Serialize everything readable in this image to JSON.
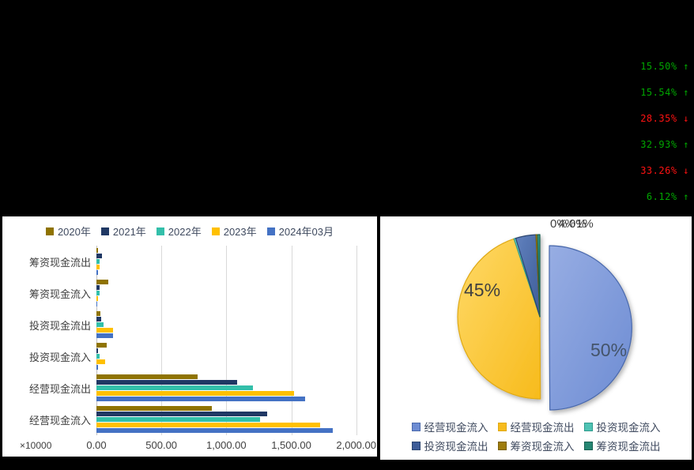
{
  "top_stats": {
    "items": [
      {
        "value": "15.50%",
        "arrow": "↑",
        "trend": "up"
      },
      {
        "value": "15.54%",
        "arrow": "↑",
        "trend": "up"
      },
      {
        "value": "28.35%",
        "arrow": "↓",
        "trend": "down"
      },
      {
        "value": "32.93%",
        "arrow": "↑",
        "trend": "up"
      },
      {
        "value": "33.26%",
        "arrow": "↓",
        "trend": "down"
      },
      {
        "value": "6.12%",
        "arrow": "↑",
        "trend": "up"
      }
    ],
    "colors": {
      "up": "#00A600",
      "down": "#FF1212"
    }
  },
  "chart_data": [
    {
      "type": "bar",
      "orientation": "horizontal",
      "unit_note": "×10000",
      "categories": [
        "筹资现金流出",
        "筹资现金流入",
        "投资现金流出",
        "投资现金流入",
        "经营现金流出",
        "经营现金流入"
      ],
      "series": [
        {
          "name": "2020年",
          "color": "#8F7300",
          "values": [
            14,
            90,
            33,
            78,
            776,
            887
          ]
        },
        {
          "name": "2021年",
          "color": "#203864",
          "values": [
            41,
            23,
            37,
            12,
            1086,
            1317
          ]
        },
        {
          "name": "2022年",
          "color": "#33BFAA",
          "values": [
            27,
            27,
            53,
            25,
            1202,
            1259
          ]
        },
        {
          "name": "2023年",
          "color": "#FFC000",
          "values": [
            27,
            12,
            130,
            67,
            1523,
            1722
          ]
        },
        {
          "name": "2024年03月",
          "color": "#4472C4",
          "values": [
            14,
            8,
            127,
            10,
            1605,
            1819
          ]
        }
      ],
      "x_ticks": [
        "0.00",
        "500.00",
        "1,000.00",
        "1,500.00",
        "2,000.00"
      ],
      "x_tick_values": [
        0,
        500,
        1000,
        1500,
        2000
      ],
      "xlim": [
        0,
        2075
      ],
      "grid": true,
      "legend_position": "top"
    },
    {
      "type": "pie",
      "slices": [
        {
          "label": "经营现金流入",
          "pct_label": "50%",
          "value": 49.9,
          "exploded": true,
          "fill": "#6D8CD3",
          "fill_light": "#97ADE3",
          "stroke": "#4A69AC"
        },
        {
          "label": "经营现金流出",
          "pct_label": "45%",
          "value": 45.0,
          "fill": "#F7BB1C",
          "fill_light": "#FFD967",
          "stroke": "#DFA912"
        },
        {
          "label": "投资现金流入",
          "pct_label": "0%",
          "value": 0.35,
          "fill": "#4FC3B4",
          "fill_light": "#7AD6CA",
          "stroke": "#2E9A8C"
        },
        {
          "label": "投资现金流出",
          "pct_label": "4%",
          "value": 4.0,
          "fill": "#3D5C98",
          "fill_light": "#6181BE",
          "stroke": "#2A4470"
        },
        {
          "label": "筹资现金流入",
          "pct_label": "0%",
          "value": 0.3,
          "fill": "#9E7C0C",
          "fill_light": "#BF9B1F",
          "stroke": "#7A5F06"
        },
        {
          "label": "筹资现金流出",
          "pct_label": "1%",
          "value": 0.45,
          "fill": "#268673",
          "fill_light": "#3BA28D",
          "stroke": "#175F50"
        }
      ],
      "legend_position": "bottom"
    }
  ]
}
